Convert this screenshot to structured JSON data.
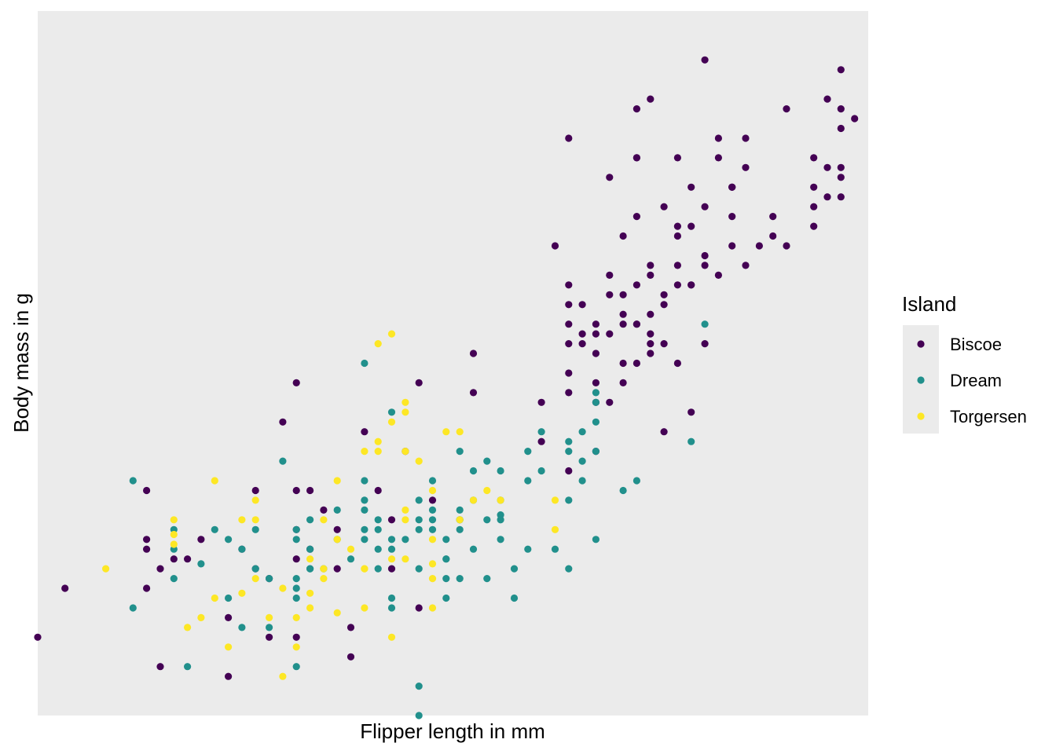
{
  "chart_data": {
    "type": "scatter",
    "title": "",
    "xlabel": "Flipper length in mm",
    "ylabel": "Body mass in g",
    "xlim": [
      171,
      232
    ],
    "ylim": [
      2700,
      6300
    ],
    "grid": false,
    "axis_ticks_visible": false,
    "panel_background": "#EBEBEB",
    "legend": {
      "title": "Island",
      "position": "right",
      "entries": [
        "Biscoe",
        "Dream",
        "Torgersen"
      ]
    },
    "colors": {
      "Biscoe": "#440154",
      "Dream": "#21908C",
      "Torgersen": "#FDE725"
    },
    "series": [
      {
        "name": "Biscoe",
        "points": [
          [
            171,
            3100
          ],
          [
            173,
            3350
          ],
          [
            179,
            3350
          ],
          [
            179,
            3600
          ],
          [
            179,
            3550
          ],
          [
            179,
            3850
          ],
          [
            180,
            3450
          ],
          [
            180,
            2950
          ],
          [
            181,
            3500
          ],
          [
            182,
            3500
          ],
          [
            183,
            3600
          ],
          [
            185,
            3200
          ],
          [
            185,
            2900
          ],
          [
            186,
            3550
          ],
          [
            187,
            3450
          ],
          [
            187,
            3850
          ],
          [
            188,
            3400
          ],
          [
            188,
            3100
          ],
          [
            189,
            4200
          ],
          [
            190,
            3500
          ],
          [
            190,
            3650
          ],
          [
            190,
            3850
          ],
          [
            190,
            4400
          ],
          [
            190,
            3100
          ],
          [
            191,
            3850
          ],
          [
            191,
            3550
          ],
          [
            192,
            3750
          ],
          [
            193,
            3650
          ],
          [
            193,
            3450
          ],
          [
            194,
            3150
          ],
          [
            194,
            3000
          ],
          [
            195,
            4150
          ],
          [
            196,
            3850
          ],
          [
            197,
            3700
          ],
          [
            197,
            3450
          ],
          [
            198,
            4050
          ],
          [
            199,
            4400
          ],
          [
            199,
            3250
          ],
          [
            200,
            3800
          ],
          [
            203,
            4550
          ],
          [
            203,
            4350
          ],
          [
            209,
            5100
          ],
          [
            210,
            4350
          ],
          [
            210,
            4450
          ],
          [
            210,
            4600
          ],
          [
            210,
            4700
          ],
          [
            210,
            4800
          ],
          [
            210,
            4900
          ],
          [
            210,
            5650
          ],
          [
            210,
            3950
          ],
          [
            211,
            4600
          ],
          [
            211,
            4800
          ],
          [
            211,
            4650
          ],
          [
            212,
            4400
          ],
          [
            212,
            4550
          ],
          [
            212,
            4300
          ],
          [
            212,
            4700
          ],
          [
            213,
            5450
          ],
          [
            213,
            4850
          ],
          [
            213,
            4950
          ],
          [
            214,
            4850
          ],
          [
            214,
            4750
          ],
          [
            214,
            5150
          ],
          [
            214,
            4700
          ],
          [
            214,
            4500
          ],
          [
            214,
            4400
          ],
          [
            215,
            5250
          ],
          [
            215,
            5550
          ],
          [
            215,
            5800
          ],
          [
            215,
            5550
          ],
          [
            215,
            4900
          ],
          [
            215,
            4500
          ],
          [
            215,
            4700
          ],
          [
            216,
            4950
          ],
          [
            216,
            4600
          ],
          [
            216,
            5000
          ],
          [
            216,
            4550
          ],
          [
            216,
            4750
          ],
          [
            216,
            4650
          ],
          [
            217,
            4800
          ],
          [
            217,
            4600
          ],
          [
            217,
            4850
          ],
          [
            217,
            4150
          ],
          [
            218,
            5000
          ],
          [
            218,
            5550
          ],
          [
            218,
            5200
          ],
          [
            219,
            5200
          ],
          [
            219,
            5400
          ],
          [
            219,
            4900
          ],
          [
            220,
            6050
          ],
          [
            220,
            5300
          ],
          [
            220,
            5000
          ],
          [
            221,
            5650
          ],
          [
            221,
            5550
          ],
          [
            222,
            5400
          ],
          [
            222,
            5100
          ],
          [
            222,
            5400
          ],
          [
            222,
            5400
          ],
          [
            223,
            5000
          ],
          [
            223,
            5650
          ],
          [
            224,
            5100
          ],
          [
            225,
            5250
          ],
          [
            225,
            5150
          ],
          [
            226,
            5100
          ],
          [
            226,
            5800
          ],
          [
            228,
            5400
          ],
          [
            228,
            5200
          ],
          [
            228,
            5300
          ],
          [
            228,
            5550
          ],
          [
            229,
            5850
          ],
          [
            229,
            5500
          ],
          [
            229,
            5350
          ],
          [
            230,
            6000
          ],
          [
            230,
            5800
          ],
          [
            230,
            5700
          ],
          [
            230,
            5500
          ],
          [
            230,
            5350
          ],
          [
            230,
            5450
          ],
          [
            231,
            5750
          ],
          [
            221,
            4950
          ],
          [
            223,
            5500
          ],
          [
            222,
            5250
          ],
          [
            220,
            5050
          ],
          [
            215,
            4700
          ],
          [
            212,
            4650
          ],
          [
            213,
            4650
          ],
          [
            218,
            5150
          ],
          [
            212,
            4050
          ],
          [
            216,
            5850
          ],
          [
            218,
            4500
          ],
          [
            219,
            4250
          ],
          [
            220,
            4600
          ],
          [
            219,
            4900
          ],
          [
            217,
            5300
          ],
          [
            208,
            4300
          ],
          [
            218,
            4900
          ],
          [
            213,
            4300
          ],
          [
            208,
            4100
          ]
        ]
      },
      {
        "name": "Dream",
        "points": [
          [
            178,
            3250
          ],
          [
            178,
            3900
          ],
          [
            181,
            3550
          ],
          [
            181,
            3650
          ],
          [
            181,
            3400
          ],
          [
            182,
            2950
          ],
          [
            183,
            3475
          ],
          [
            184,
            3650
          ],
          [
            185,
            3600
          ],
          [
            185,
            3300
          ],
          [
            186,
            3550
          ],
          [
            186,
            3150
          ],
          [
            187,
            3650
          ],
          [
            187,
            3450
          ],
          [
            188,
            3150
          ],
          [
            188,
            3400
          ],
          [
            189,
            4000
          ],
          [
            190,
            3350
          ],
          [
            190,
            3650
          ],
          [
            190,
            3600
          ],
          [
            190,
            3400
          ],
          [
            190,
            3300
          ],
          [
            190,
            2950
          ],
          [
            191,
            3450
          ],
          [
            191,
            3450
          ],
          [
            191,
            3550
          ],
          [
            191,
            3700
          ],
          [
            192,
            3450
          ],
          [
            193,
            3750
          ],
          [
            193,
            3600
          ],
          [
            194,
            3500
          ],
          [
            195,
            3600
          ],
          [
            195,
            3800
          ],
          [
            195,
            3750
          ],
          [
            195,
            4500
          ],
          [
            195,
            3650
          ],
          [
            195,
            3900
          ],
          [
            196,
            3550
          ],
          [
            196,
            3700
          ],
          [
            196,
            3450
          ],
          [
            196,
            3650
          ],
          [
            197,
            3250
          ],
          [
            197,
            4250
          ],
          [
            197,
            3300
          ],
          [
            197,
            3550
          ],
          [
            198,
            3600
          ],
          [
            199,
            3450
          ],
          [
            199,
            3700
          ],
          [
            199,
            3800
          ],
          [
            199,
            2850
          ],
          [
            199,
            3650
          ],
          [
            199,
            2700
          ],
          [
            200,
            3650
          ],
          [
            200,
            3700
          ],
          [
            200,
            3750
          ],
          [
            201,
            3500
          ],
          [
            201,
            3300
          ],
          [
            201,
            3600
          ],
          [
            201,
            3500
          ],
          [
            201,
            3400
          ],
          [
            202,
            4050
          ],
          [
            202,
            3650
          ],
          [
            202,
            3750
          ],
          [
            202,
            3700
          ],
          [
            202,
            3400
          ],
          [
            203,
            3950
          ],
          [
            203,
            3550
          ],
          [
            203,
            3800
          ],
          [
            204,
            3700
          ],
          [
            204,
            3400
          ],
          [
            204,
            4000
          ],
          [
            205,
            3725
          ],
          [
            205,
            3700
          ],
          [
            205,
            3800
          ],
          [
            205,
            3950
          ],
          [
            206,
            3450
          ],
          [
            206,
            3300
          ],
          [
            207,
            3550
          ],
          [
            207,
            3900
          ],
          [
            207,
            4050
          ],
          [
            208,
            3950
          ],
          [
            208,
            4150
          ],
          [
            209,
            3550
          ],
          [
            210,
            4100
          ],
          [
            210,
            4050
          ],
          [
            210,
            3800
          ],
          [
            210,
            3450
          ],
          [
            211,
            3900
          ],
          [
            211,
            4150
          ],
          [
            211,
            4000
          ],
          [
            212,
            4350
          ],
          [
            212,
            4300
          ],
          [
            212,
            4050
          ],
          [
            214,
            3850
          ],
          [
            215,
            3900
          ],
          [
            212,
            3600
          ],
          [
            220,
            4700
          ],
          [
            219,
            4100
          ],
          [
            212,
            4200
          ],
          [
            205,
            3600
          ],
          [
            202,
            3700
          ],
          [
            200,
            3900
          ],
          [
            197,
            3600
          ]
        ]
      },
      {
        "name": "Torgersen",
        "points": [
          [
            176,
            3450
          ],
          [
            181,
            3700
          ],
          [
            181,
            3625
          ],
          [
            181,
            3575
          ],
          [
            182,
            3150
          ],
          [
            183,
            3200
          ],
          [
            184,
            3300
          ],
          [
            184,
            3900
          ],
          [
            185,
            3050
          ],
          [
            186,
            3700
          ],
          [
            186,
            3325
          ],
          [
            187,
            3700
          ],
          [
            187,
            3800
          ],
          [
            187,
            3400
          ],
          [
            188,
            3200
          ],
          [
            189,
            3350
          ],
          [
            189,
            2900
          ],
          [
            190,
            3050
          ],
          [
            190,
            3200
          ],
          [
            191,
            3325
          ],
          [
            191,
            3250
          ],
          [
            191,
            3500
          ],
          [
            192,
            3700
          ],
          [
            192,
            3450
          ],
          [
            193,
            3900
          ],
          [
            193,
            3225
          ],
          [
            195,
            4050
          ],
          [
            195,
            3450
          ],
          [
            195,
            3250
          ],
          [
            195,
            3450
          ],
          [
            196,
            4050
          ],
          [
            196,
            4600
          ],
          [
            196,
            4100
          ],
          [
            197,
            4650
          ],
          [
            197,
            3500
          ],
          [
            197,
            3100
          ],
          [
            198,
            4050
          ],
          [
            198,
            4300
          ],
          [
            198,
            4250
          ],
          [
            198,
            3750
          ],
          [
            199,
            4000
          ],
          [
            200,
            3600
          ],
          [
            200,
            3850
          ],
          [
            200,
            3400
          ],
          [
            200,
            3250
          ],
          [
            200,
            3475
          ],
          [
            202,
            3700
          ],
          [
            203,
            3800
          ],
          [
            204,
            3850
          ],
          [
            205,
            3800
          ],
          [
            209,
            3800
          ],
          [
            209,
            3650
          ],
          [
            202,
            4150
          ],
          [
            201,
            4150
          ],
          [
            197,
            4200
          ],
          [
            198,
            3700
          ],
          [
            192,
            3400
          ],
          [
            194,
            3550
          ],
          [
            193,
            3600
          ],
          [
            198,
            3500
          ]
        ]
      }
    ]
  }
}
